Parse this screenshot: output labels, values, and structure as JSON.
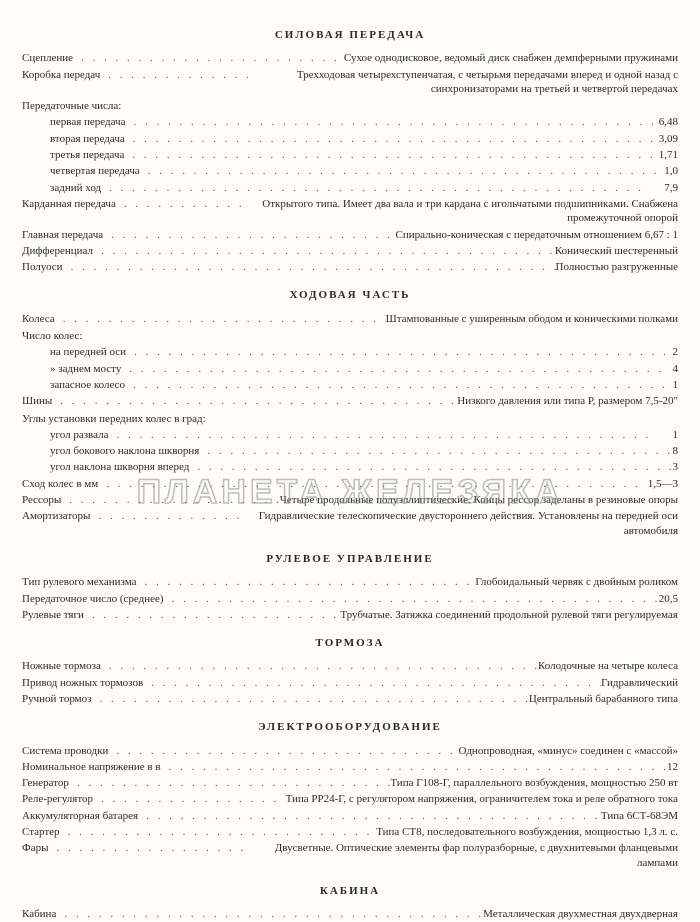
{
  "watermark": "ПЛАНЕТА ЖЕЛЕЗЯКА",
  "sections": [
    {
      "title": "СИЛОВАЯ ПЕРЕДАЧА",
      "rows": [
        {
          "label": "Сцепление",
          "value": "Сухое однодисковое, ведомый диск снабжен демпферными пружинами"
        },
        {
          "label": "Коробка передач",
          "value": "Трехходовая четырехступенчатая, с четырьмя передачами вперед и одной назад с синхронизаторами на третьей и четвертой передачах"
        },
        {
          "label": "Передаточные числа:",
          "value": "",
          "nodots": true,
          "sub": true
        },
        {
          "label": "первая передача",
          "value": "6,48",
          "indent": true
        },
        {
          "label": "вторая передача",
          "value": "3,09",
          "indent": true
        },
        {
          "label": "третья передача",
          "value": "1,71",
          "indent": true
        },
        {
          "label": "четвертая передача",
          "value": "1,0",
          "indent": true
        },
        {
          "label": "задний ход",
          "value": "7,9",
          "indent": true
        },
        {
          "label": "Карданная передача",
          "value": "Открытого типа. Имеет два вала и три кардана с игольчатыми подшипниками. Снабжена промежуточной опорой"
        },
        {
          "label": "Главная передача",
          "value": "Спирально-коническая с передаточным отношением 6,67 : 1"
        },
        {
          "label": "Дифференциал",
          "value": "Конический шестеренный"
        },
        {
          "label": "Полуоси",
          "value": "Полностью разгруженные"
        }
      ]
    },
    {
      "title": "ХОДОВАЯ ЧАСТЬ",
      "rows": [
        {
          "label": "Колеса",
          "value": "Штампованные с уширенным ободом и коническими полками"
        },
        {
          "label": "Число колес:",
          "value": "",
          "nodots": true,
          "sub": true
        },
        {
          "label": "на передней оси",
          "value": "2",
          "indent": true
        },
        {
          "label": "» заднем мосту",
          "value": "4",
          "indent": true
        },
        {
          "label": "запасное колесо",
          "value": "1",
          "indent": true
        },
        {
          "label": "Шины",
          "value": "Низкого давления или типа Р, размером 7,5-20\""
        },
        {
          "label": "Углы установки передних колес в град:",
          "value": "",
          "nodots": true,
          "sub": true
        },
        {
          "label": "угол развала",
          "value": "1",
          "indent": true
        },
        {
          "label": "угол бокового наклона шкворня",
          "value": "8",
          "indent": true
        },
        {
          "label": "угол наклона шкворня вперед",
          "value": "3",
          "indent": true
        },
        {
          "label": "Сход колес в мм",
          "value": "1,5—3"
        },
        {
          "label": "Рессоры",
          "value": "Четыре продольные полуэллиптические. Концы рессор заделаны в резиновые опоры"
        },
        {
          "label": "Амортизаторы",
          "value": "Гидравлические телескопические двустороннего действия. Установлены на передней оси автомобиля"
        }
      ]
    },
    {
      "title": "РУЛЕВОЕ УПРАВЛЕНИЕ",
      "rows": [
        {
          "label": "Тип рулевого механизма",
          "value": "Глобоидальный червяк с двойным роликом"
        },
        {
          "label": "Передаточное число (среднее)",
          "value": "20,5"
        },
        {
          "label": "Рулевые тяги",
          "value": "Трубчатые. Затяжка соединений продольной рулевой тяги регулируемая"
        }
      ]
    },
    {
      "title": "ТОРМОЗА",
      "rows": [
        {
          "label": "Ножные тормоза",
          "value": "Колодочные на четыре колеса"
        },
        {
          "label": "Привод ножных тормозов",
          "value": "Гидравлический"
        },
        {
          "label": "Ручной тормоз",
          "value": "Центральный барабанного типа"
        }
      ]
    },
    {
      "title": "ЭЛЕКТРООБОРУДОВАНИЕ",
      "rows": [
        {
          "label": "Система проводки",
          "value": "Однопроводная, «минус» соединен с «массой»"
        },
        {
          "label": "Номинальное напряжение в в",
          "value": "12"
        },
        {
          "label": "Генератор",
          "value": "Типа Г108-Г, параллельного возбуждения, мощностью 250 вт"
        },
        {
          "label": "Реле-регулятор",
          "value": "Типа РР24-Г, с регулятором напряжения, ограничителем тока и реле обратного тока"
        },
        {
          "label": "Аккумуляторная батарея",
          "value": "Типа 6СТ-68ЭМ"
        },
        {
          "label": "Стартер",
          "value": "Типа СТ8, последовательного возбуждения, мощностью 1,3 л. с."
        },
        {
          "label": "Фары",
          "value": "Двусветные. Оптические элементы фар полуразборные, с двухнитевыми фланцевыми лампами"
        }
      ]
    },
    {
      "title": "КАБИНА",
      "rows": [
        {
          "label": "Кабина",
          "value": "Металлическая двухместная двухдверная"
        }
      ]
    }
  ]
}
